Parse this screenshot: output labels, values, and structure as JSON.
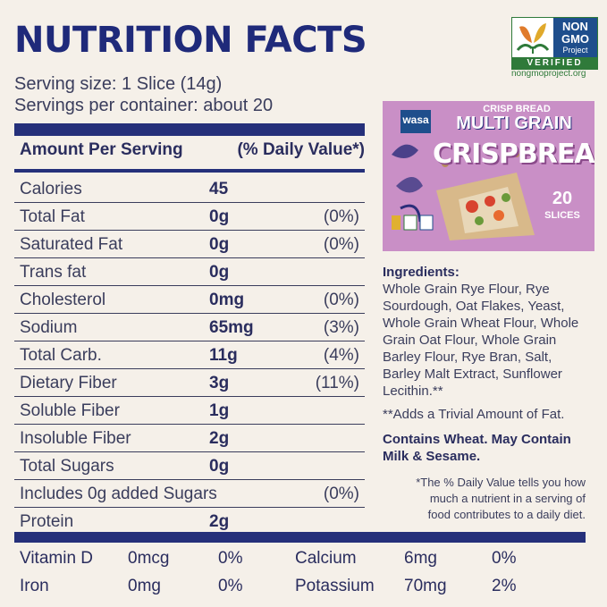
{
  "title": "NUTRITION FACTS",
  "serving_size": "Serving size: 1 Slice (14g)",
  "servings_per_container": "Servings per container: about 20",
  "header": {
    "amount_label": "Amount Per Serving",
    "dv_label": "(% Daily Value*)"
  },
  "nutrients": [
    {
      "name": "Calories",
      "amount": "45",
      "dv": ""
    },
    {
      "name": "Total Fat",
      "amount": "0g",
      "dv": "(0%)"
    },
    {
      "name": "Saturated Fat",
      "amount": "0g",
      "dv": "(0%)"
    },
    {
      "name": "Trans fat",
      "amount": "0g",
      "dv": ""
    },
    {
      "name": "Cholesterol",
      "amount": "0mg",
      "dv": "(0%)"
    },
    {
      "name": "Sodium",
      "amount": "65mg",
      "dv": "(3%)"
    },
    {
      "name": "Total Carb.",
      "amount": "11g",
      "dv": "(4%)"
    },
    {
      "name": "Dietary Fiber",
      "amount": "3g",
      "dv": "(11%)"
    },
    {
      "name": "Soluble Fiber",
      "amount": "1g",
      "dv": ""
    },
    {
      "name": "Insoluble Fiber",
      "amount": "2g",
      "dv": ""
    },
    {
      "name": "Total Sugars",
      "amount": "0g",
      "dv": ""
    },
    {
      "name": "Includes 0g added Sugars",
      "amount": "",
      "dv": "(0%)"
    },
    {
      "name": "Protein",
      "amount": "2g",
      "dv": ""
    }
  ],
  "vitamins": [
    {
      "name": "Vitamin D",
      "amount": "0mcg",
      "dv": "0%"
    },
    {
      "name": "Calcium",
      "amount": "6mg",
      "dv": "0%"
    },
    {
      "name": "Iron",
      "amount": "0mg",
      "dv": "0%"
    },
    {
      "name": "Potassium",
      "amount": "70mg",
      "dv": "2%"
    }
  ],
  "logo": {
    "line1": "NON",
    "line2": "GMO",
    "line3": "Project",
    "verified": "VERIFIED",
    "url": "nongmoproject.org"
  },
  "package": {
    "brand": "wasa",
    "small_text": "CRISP BREAD",
    "variety": "MULTI GRAIN",
    "product": "CRISPBREAD",
    "count": "20",
    "count_label": "SLICES"
  },
  "ingredients": {
    "heading": "Ingredients:",
    "lines": [
      "Whole Grain Rye Flour, Rye",
      "Sourdough, Oat Flakes, Yeast,",
      "Whole Grain Wheat Flour, Whole",
      "Grain Oat Flour, Whole Grain",
      "Barley Flour, Rye Bran, Salt,",
      "Barley Malt Extract, Sunflower",
      "Lecithin.**"
    ]
  },
  "trivial_note": "**Adds a Trivial Amount of Fat.",
  "contains": [
    "Contains Wheat. May Contain",
    "Milk & Sesame."
  ],
  "dv_note": [
    "*The % Daily Value tells you how",
    "much a nutrient in a serving of",
    "food contributes to a daily diet."
  ],
  "colors": {
    "navy": "#25307a",
    "background": "#f5f0e9",
    "package_pink": "#c98fc6",
    "logo_green": "#2f7a3a"
  }
}
